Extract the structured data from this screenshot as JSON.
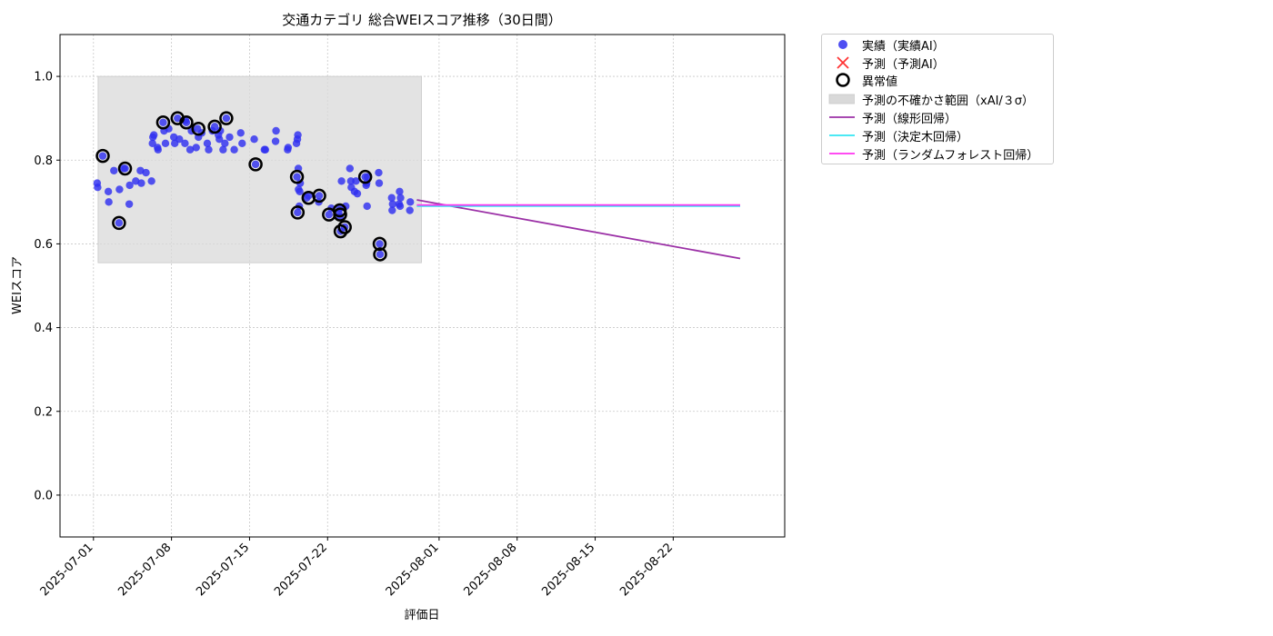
{
  "chart_data": {
    "type": "scatter",
    "title": "交通カテゴリ 総合WEIスコア推移（30日間）",
    "xlabel": "評価日",
    "ylabel": "WEIスコア",
    "xlim": [
      "2025-06-28",
      "2025-09-01"
    ],
    "ylim": [
      -0.1,
      1.1
    ],
    "x_ticks": [
      "2025-07-01",
      "2025-07-08",
      "2025-07-15",
      "2025-07-22",
      "2025-08-01",
      "2025-08-08",
      "2025-08-15",
      "2025-08-22"
    ],
    "y_ticks": [
      "0.0",
      "0.2",
      "0.4",
      "0.6",
      "0.8",
      "1.0"
    ],
    "grid": true,
    "legend_position": "outside-top-right",
    "uncertainty_band": {
      "x_start": "2025-07-01 10:00",
      "x_end": "2025-07-30 10:00",
      "y_low": 0.555,
      "y_high": 1.0
    },
    "series": [
      {
        "name": "実績（実績AI）",
        "kind": "scatter",
        "color": "#2f2ff0",
        "points": [
          [
            "2025-07-01 08:00",
            0.745
          ],
          [
            "2025-07-01 09:00",
            0.735
          ],
          [
            "2025-07-01 20:00",
            0.81
          ],
          [
            "2025-07-02 08:00",
            0.725
          ],
          [
            "2025-07-02 09:00",
            0.7
          ],
          [
            "2025-07-02 20:00",
            0.775
          ],
          [
            "2025-07-03 07:00",
            0.65
          ],
          [
            "2025-07-03 08:00",
            0.73
          ],
          [
            "2025-07-03 17:00",
            0.78
          ],
          [
            "2025-07-03 20:00",
            0.78
          ],
          [
            "2025-07-04 05:00",
            0.695
          ],
          [
            "2025-07-04 06:00",
            0.74
          ],
          [
            "2025-07-04 19:00",
            0.75
          ],
          [
            "2025-07-05 05:00",
            0.775
          ],
          [
            "2025-07-05 07:00",
            0.745
          ],
          [
            "2025-07-05 17:00",
            0.77
          ],
          [
            "2025-07-06 05:00",
            0.75
          ],
          [
            "2025-07-06 07:00",
            0.84
          ],
          [
            "2025-07-06 08:00",
            0.855
          ],
          [
            "2025-07-06 10:00",
            0.86
          ],
          [
            "2025-07-06 18:00",
            0.83
          ],
          [
            "2025-07-06 19:00",
            0.825
          ],
          [
            "2025-07-07 06:00",
            0.89
          ],
          [
            "2025-07-07 08:00",
            0.87
          ],
          [
            "2025-07-07 11:00",
            0.84
          ],
          [
            "2025-07-07 18:00",
            0.875
          ],
          [
            "2025-07-08 05:00",
            0.855
          ],
          [
            "2025-07-08 07:00",
            0.84
          ],
          [
            "2025-07-08 13:00",
            0.9
          ],
          [
            "2025-07-08 17:00",
            0.85
          ],
          [
            "2025-07-09 05:00",
            0.84
          ],
          [
            "2025-07-09 06:00",
            0.895
          ],
          [
            "2025-07-09 08:00",
            0.89
          ],
          [
            "2025-07-09 16:00",
            0.825
          ],
          [
            "2025-07-09 19:00",
            0.87
          ],
          [
            "2025-07-10 05:00",
            0.83
          ],
          [
            "2025-07-10 08:00",
            0.875
          ],
          [
            "2025-07-10 10:00",
            0.855
          ],
          [
            "2025-07-10 17:00",
            0.865
          ],
          [
            "2025-07-11 05:00",
            0.84
          ],
          [
            "2025-07-11 08:00",
            0.825
          ],
          [
            "2025-07-11 16:00",
            0.87
          ],
          [
            "2025-07-11 21:00",
            0.88
          ],
          [
            "2025-07-12 05:00",
            0.86
          ],
          [
            "2025-07-12 07:00",
            0.85
          ],
          [
            "2025-07-12 09:00",
            0.87
          ],
          [
            "2025-07-12 15:00",
            0.825
          ],
          [
            "2025-07-12 19:00",
            0.84
          ],
          [
            "2025-07-12 22:00",
            0.9
          ],
          [
            "2025-07-13 05:00",
            0.855
          ],
          [
            "2025-07-13 15:00",
            0.825
          ],
          [
            "2025-07-14 05:00",
            0.865
          ],
          [
            "2025-07-14 08:00",
            0.84
          ],
          [
            "2025-07-15 10:00",
            0.85
          ],
          [
            "2025-07-15 13:00",
            0.79
          ],
          [
            "2025-07-16 08:00",
            0.825
          ],
          [
            "2025-07-16 10:00",
            0.825
          ],
          [
            "2025-07-17 08:00",
            0.845
          ],
          [
            "2025-07-17 09:00",
            0.87
          ],
          [
            "2025-07-18 10:00",
            0.825
          ],
          [
            "2025-07-18 11:00",
            0.83
          ],
          [
            "2025-07-19 05:00",
            0.84
          ],
          [
            "2025-07-19 07:00",
            0.85
          ],
          [
            "2025-07-19 08:00",
            0.86
          ],
          [
            "2025-07-19 09:00",
            0.78
          ],
          [
            "2025-07-19 06:00",
            0.76
          ],
          [
            "2025-07-19 07:30",
            0.675
          ],
          [
            "2025-07-19 09:30",
            0.73
          ],
          [
            "2025-07-19 11:00",
            0.69
          ],
          [
            "2025-07-19 12:00",
            0.725
          ],
          [
            "2025-07-19 13:00",
            0.745
          ],
          [
            "2025-07-20 03:00",
            0.71
          ],
          [
            "2025-07-20 07:00",
            0.715
          ],
          [
            "2025-07-21 05:00",
            0.7
          ],
          [
            "2025-07-21 06:00",
            0.715
          ],
          [
            "2025-07-22 03:00",
            0.67
          ],
          [
            "2025-07-22 08:00",
            0.685
          ],
          [
            "2025-07-23 00:00",
            0.675
          ],
          [
            "2025-07-23 02:00",
            0.685
          ],
          [
            "2025-07-23 03:00",
            0.665
          ],
          [
            "2025-07-23 04:00",
            0.63
          ],
          [
            "2025-07-23 06:00",
            0.75
          ],
          [
            "2025-07-23 13:00",
            0.64
          ],
          [
            "2025-07-23 15:00",
            0.69
          ],
          [
            "2025-07-24 00:00",
            0.78
          ],
          [
            "2025-07-24 02:00",
            0.75
          ],
          [
            "2025-07-24 03:00",
            0.735
          ],
          [
            "2025-07-24 10:00",
            0.725
          ],
          [
            "2025-07-24 13:00",
            0.75
          ],
          [
            "2025-07-24 16:00",
            0.72
          ],
          [
            "2025-07-25 09:00",
            0.76
          ],
          [
            "2025-07-25 11:00",
            0.74
          ],
          [
            "2025-07-25 12:00",
            0.745
          ],
          [
            "2025-07-25 13:00",
            0.69
          ],
          [
            "2025-07-25 14:00",
            0.76
          ],
          [
            "2025-07-26 14:00",
            0.77
          ],
          [
            "2025-07-26 15:00",
            0.745
          ],
          [
            "2025-07-26 16:00",
            0.6
          ],
          [
            "2025-07-26 17:00",
            0.575
          ],
          [
            "2025-07-27 18:00",
            0.71
          ],
          [
            "2025-07-27 19:00",
            0.68
          ],
          [
            "2025-07-27 20:00",
            0.695
          ],
          [
            "2025-07-28 10:00",
            0.695
          ],
          [
            "2025-07-28 11:00",
            0.725
          ],
          [
            "2025-07-28 12:00",
            0.69
          ],
          [
            "2025-07-28 13:00",
            0.71
          ],
          [
            "2025-07-29 09:00",
            0.68
          ],
          [
            "2025-07-29 10:00",
            0.7
          ]
        ]
      },
      {
        "name": "予測（予測AI）",
        "kind": "x-marker",
        "color": "#ff3333",
        "points": []
      },
      {
        "name": "異常値",
        "kind": "ring",
        "color": "#000000",
        "points": [
          [
            "2025-07-01 20:00",
            0.81
          ],
          [
            "2025-07-03 07:00",
            0.65
          ],
          [
            "2025-07-03 20:00",
            0.78
          ],
          [
            "2025-07-07 06:00",
            0.89
          ],
          [
            "2025-07-08 13:00",
            0.9
          ],
          [
            "2025-07-09 08:00",
            0.89
          ],
          [
            "2025-07-10 10:00",
            0.875
          ],
          [
            "2025-07-11 21:00",
            0.88
          ],
          [
            "2025-07-12 22:00",
            0.9
          ],
          [
            "2025-07-15 13:00",
            0.79
          ],
          [
            "2025-07-19 06:00",
            0.76
          ],
          [
            "2025-07-19 07:30",
            0.675
          ],
          [
            "2025-07-20 07:00",
            0.71
          ],
          [
            "2025-07-21 06:00",
            0.715
          ],
          [
            "2025-07-22 03:00",
            0.67
          ],
          [
            "2025-07-23 02:00",
            0.68
          ],
          [
            "2025-07-23 03:00",
            0.67
          ],
          [
            "2025-07-23 04:00",
            0.63
          ],
          [
            "2025-07-23 13:00",
            0.64
          ],
          [
            "2025-07-25 09:00",
            0.76
          ],
          [
            "2025-07-26 16:00",
            0.6
          ],
          [
            "2025-07-26 17:00",
            0.575
          ]
        ]
      },
      {
        "name": "予測（線形回帰）",
        "kind": "line",
        "color": "#9b30a6",
        "points": [
          [
            "2025-07-30 00:00",
            0.705
          ],
          [
            "2025-08-28 00:00",
            0.565
          ]
        ]
      },
      {
        "name": "予測（決定木回帰）",
        "kind": "line",
        "color": "#33e6f2",
        "points": [
          [
            "2025-07-30 00:00",
            0.69
          ],
          [
            "2025-08-28 00:00",
            0.69
          ]
        ]
      },
      {
        "name": "予測（ランダムフォレスト回帰）",
        "kind": "line",
        "color": "#ff33f0",
        "points": [
          [
            "2025-07-30 00:00",
            0.693
          ],
          [
            "2025-08-28 00:00",
            0.693
          ]
        ]
      }
    ],
    "band_legend_label": "予測の不確かさ範囲（xAI/３σ）"
  }
}
